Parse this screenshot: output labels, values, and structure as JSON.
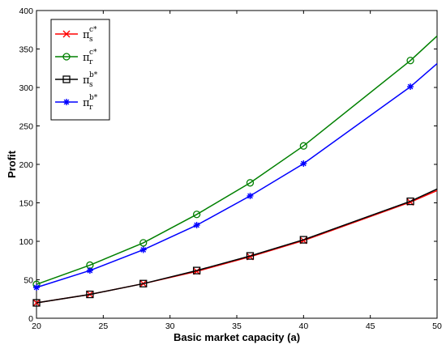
{
  "chart_data": {
    "type": "line",
    "xlabel": "Basic market capacity (a)",
    "ylabel": "Profit",
    "xlim": [
      20,
      50
    ],
    "ylim": [
      0,
      400
    ],
    "xticks": [
      20,
      25,
      30,
      35,
      40,
      45,
      50
    ],
    "yticks": [
      0,
      50,
      100,
      150,
      200,
      250,
      300,
      350,
      400
    ],
    "grid": false,
    "legend_position": "top-left",
    "series": [
      {
        "name": "π_s^{c*}",
        "legend_base": "π",
        "legend_sup": "c*",
        "legend_sub": "s",
        "color": "#ff0000",
        "marker": "x",
        "x": [
          20,
          24,
          28,
          32,
          36,
          40,
          48,
          50
        ],
        "values": [
          20,
          31,
          45,
          61,
          80,
          101,
          151,
          166
        ]
      },
      {
        "name": "π_r^{c*}",
        "legend_base": "π",
        "legend_sup": "c*",
        "legend_sub": "r",
        "color": "#008000",
        "marker": "o",
        "x": [
          20,
          24,
          28,
          32,
          36,
          40,
          48,
          50
        ],
        "values": [
          44,
          69,
          98,
          135,
          176,
          224,
          335,
          367
        ]
      },
      {
        "name": "π_s^{b*}",
        "legend_base": "π",
        "legend_sup": "b*",
        "legend_sub": "s",
        "color": "#000000",
        "marker": "s",
        "x": [
          20,
          24,
          28,
          32,
          36,
          40,
          48,
          50
        ],
        "values": [
          20,
          31,
          45,
          62,
          81,
          102,
          152,
          168
        ]
      },
      {
        "name": "π_r^{b*}",
        "legend_base": "π",
        "legend_sup": "b*",
        "legend_sub": "r",
        "color": "#0000ff",
        "marker": "*",
        "x": [
          20,
          24,
          28,
          32,
          36,
          40,
          48,
          50
        ],
        "values": [
          40,
          62,
          89,
          121,
          159,
          201,
          301,
          331
        ]
      }
    ]
  }
}
